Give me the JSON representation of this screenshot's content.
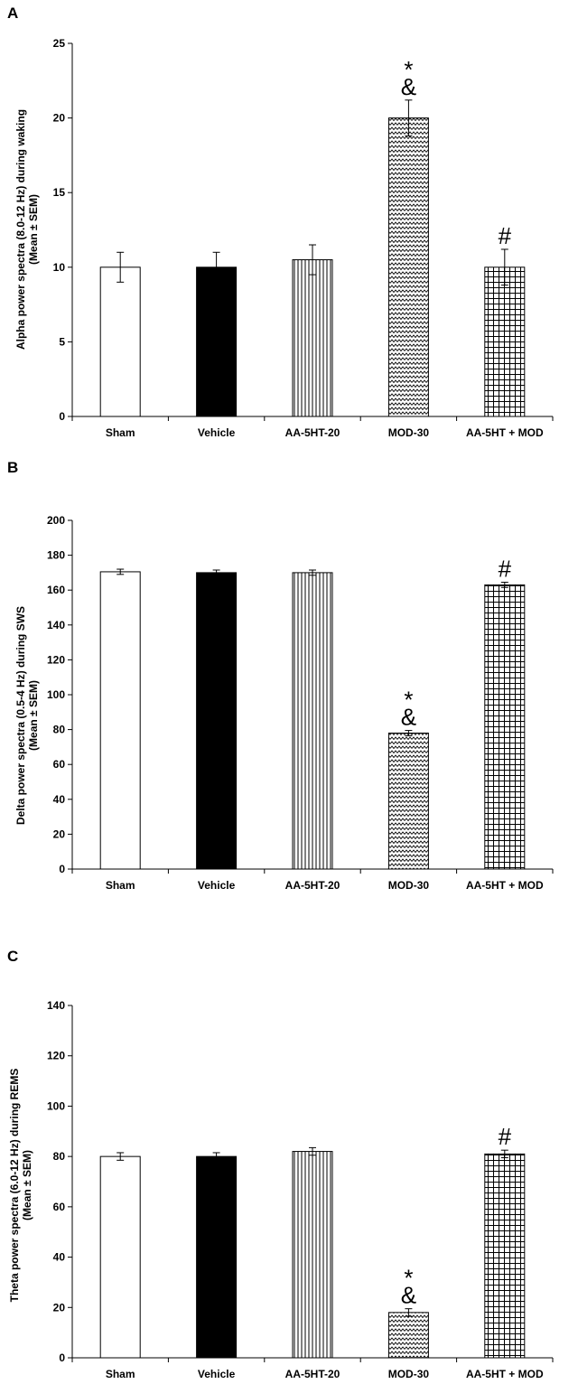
{
  "chart_data": [
    {
      "type": "bar",
      "panel_label": "A",
      "title": "",
      "ylabel_line1": "Alpha power spectra (8.0-12 Hz) during waking",
      "ylabel_line2": "(Mean ± SEM)",
      "xlabel": "",
      "categories": [
        "Sham",
        "Vehicle",
        "AA-5HT-20",
        "MOD-30",
        "AA-5HT + MOD"
      ],
      "values": [
        10,
        10,
        10.5,
        20,
        10
      ],
      "errors": [
        1,
        1,
        1,
        1.2,
        1.2
      ],
      "ylim": [
        0,
        25
      ],
      "yticks": [
        "0",
        "5",
        "10",
        "15",
        "20",
        "25"
      ],
      "significance": [
        [
          "",
          ""
        ],
        [
          "",
          ""
        ],
        [
          "",
          ""
        ],
        [
          "*",
          "&"
        ],
        [
          "#",
          ""
        ]
      ]
    },
    {
      "type": "bar",
      "panel_label": "B",
      "title": "",
      "ylabel_line1": "Delta power spectra (0.5-4 Hz) during SWS",
      "ylabel_line2": "(Mean ± SEM)",
      "xlabel": "",
      "categories": [
        "Sham",
        "Vehicle",
        "AA-5HT-20",
        "MOD-30",
        "AA-5HT + MOD"
      ],
      "values": [
        170.5,
        170,
        170,
        78,
        163
      ],
      "errors": [
        1.5,
        1.5,
        1.5,
        1.5,
        1.5
      ],
      "ylim": [
        0,
        200
      ],
      "yticks": [
        "0",
        "20",
        "40",
        "60",
        "80",
        "100",
        "120",
        "140",
        "160",
        "180",
        "200"
      ],
      "significance": [
        [
          "",
          ""
        ],
        [
          "",
          ""
        ],
        [
          "",
          ""
        ],
        [
          "*",
          "&"
        ],
        [
          "#",
          ""
        ]
      ]
    },
    {
      "type": "bar",
      "panel_label": "C",
      "title": "",
      "ylabel_line1": "Theta power spectra (6.0-12 Hz) during REMS",
      "ylabel_line2": "(Mean ± SEM)",
      "xlabel": "",
      "categories": [
        "Sham",
        "Vehicle",
        "AA-5HT-20",
        "MOD-30",
        "AA-5HT + MOD"
      ],
      "values": [
        80,
        80,
        82,
        18,
        81
      ],
      "errors": [
        1.5,
        1.5,
        1.5,
        1.5,
        1.5
      ],
      "ylim": [
        0,
        140
      ],
      "yticks": [
        "0",
        "20",
        "40",
        "60",
        "80",
        "100",
        "120",
        "140"
      ],
      "significance": [
        [
          "",
          ""
        ],
        [
          "",
          ""
        ],
        [
          "",
          ""
        ],
        [
          "*",
          "&"
        ],
        [
          "#",
          ""
        ]
      ]
    }
  ]
}
